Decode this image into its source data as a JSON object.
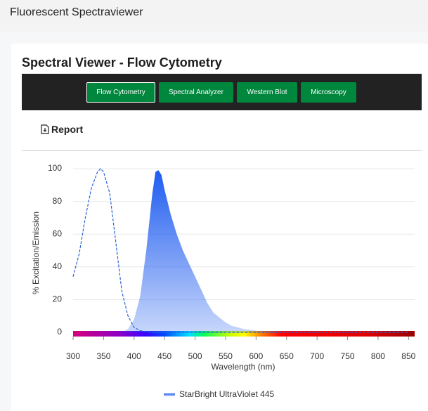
{
  "header": {
    "title": "Fluorescent Spectraviewer"
  },
  "panel": {
    "title": "Spectral Viewer - Flow Cytometry",
    "tabs": [
      "Flow Cytometry",
      "Spectral Analyzer",
      "Western Blot",
      "Microscopy"
    ],
    "report": "Report"
  },
  "chart_data": {
    "type": "area",
    "ylabel": "% Excitation/Emission",
    "xlabel": "Wavelength (nm)",
    "xlim": [
      300,
      860
    ],
    "ylim": [
      0,
      100
    ],
    "xticks": [
      300,
      350,
      400,
      450,
      500,
      550,
      600,
      650,
      700,
      750,
      800,
      850
    ],
    "yticks": [
      0,
      20,
      40,
      60,
      80,
      100
    ],
    "grid": true,
    "series": [
      {
        "color": "#2a62d6",
        "dashed": true,
        "filled": false,
        "x": [
          300,
          310,
          320,
          330,
          340,
          345,
          350,
          360,
          370,
          380,
          390,
          400,
          410,
          420,
          430,
          500,
          850
        ],
        "values": [
          34,
          48,
          70,
          88,
          98,
          100,
          98,
          85,
          55,
          25,
          10,
          3,
          1,
          0.5,
          0,
          0,
          0
        ]
      },
      {
        "name": "StarBright UltraViolet 445",
        "color": "#1f5cf0",
        "dashed": false,
        "filled": true,
        "x": [
          380,
          390,
          400,
          410,
          420,
          430,
          435,
          440,
          445,
          450,
          460,
          470,
          480,
          490,
          500,
          510,
          520,
          530,
          540,
          550,
          560,
          580,
          600,
          650,
          700,
          850
        ],
        "values": [
          0,
          2,
          8,
          22,
          50,
          85,
          98,
          99,
          96,
          87,
          72,
          60,
          50,
          42,
          34,
          26,
          18,
          12,
          9,
          6,
          4,
          2,
          1,
          0.5,
          0,
          0
        ]
      }
    ]
  }
}
